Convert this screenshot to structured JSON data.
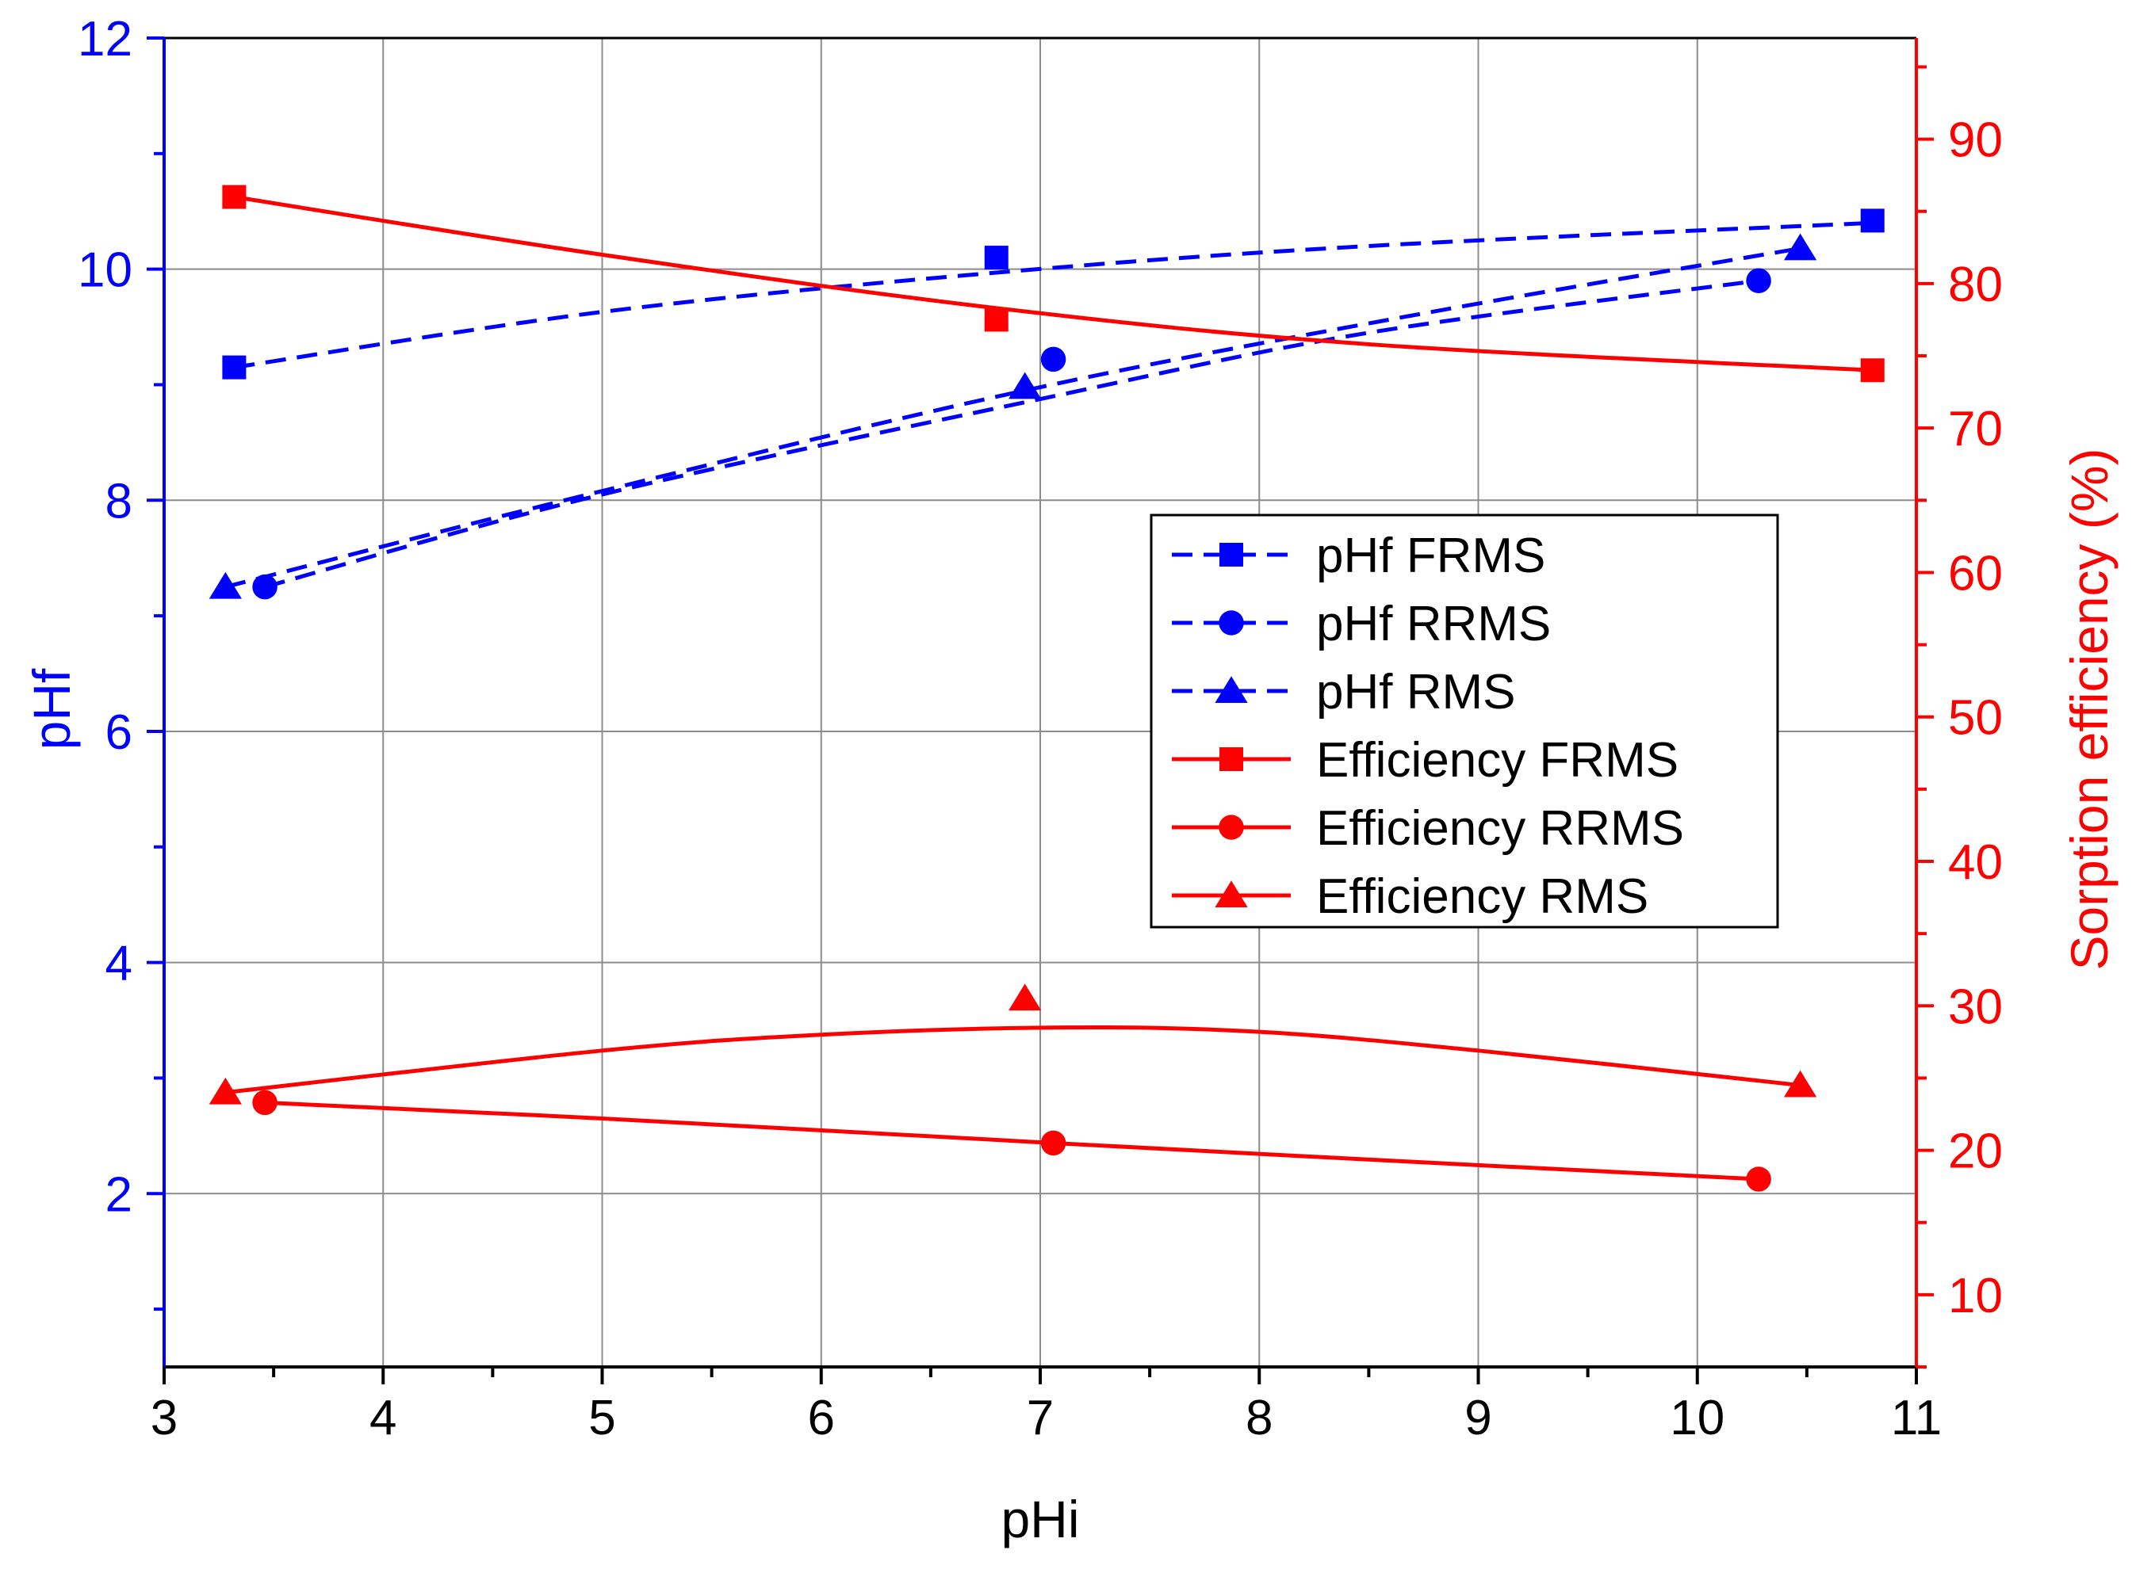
{
  "chart_data": {
    "type": "line",
    "x_axis": {
      "label": "pHi",
      "range": [
        3,
        11
      ],
      "ticks": [
        3,
        4,
        5,
        6,
        7,
        8,
        9,
        10,
        11
      ],
      "minor_step": 0.5,
      "color": "#000000"
    },
    "y_axis_left": {
      "label": "pHf",
      "range": [
        0.5,
        12
      ],
      "ticks": [
        2,
        4,
        6,
        8,
        10,
        12
      ],
      "minor_step": 1,
      "color": "#0000ff"
    },
    "y_axis_right": {
      "label": "Sorption efficiency (%)",
      "range": [
        5,
        97
      ],
      "ticks": [
        10,
        20,
        30,
        40,
        50,
        60,
        70,
        80,
        90
      ],
      "minor_step": 5,
      "color": "#ff0000"
    },
    "grid": true,
    "legend_position": "center-right",
    "series": [
      {
        "name": "pHf FRMS",
        "axis": "left",
        "marker": "square",
        "line": "dashed",
        "color": "#0000ff",
        "points": [
          [
            3.32,
            9.15
          ],
          [
            6.8,
            10.1
          ],
          [
            10.8,
            10.42
          ]
        ],
        "fit": [
          [
            3.32,
            9.15
          ],
          [
            5.0,
            9.63
          ],
          [
            6.8,
            9.97
          ],
          [
            8.5,
            10.2
          ],
          [
            10.8,
            10.4
          ]
        ]
      },
      {
        "name": "pHf RRMS",
        "axis": "left",
        "marker": "circle",
        "line": "dashed",
        "color": "#0000ff",
        "points": [
          [
            3.46,
            7.25
          ],
          [
            7.06,
            9.22
          ],
          [
            10.28,
            9.9
          ]
        ],
        "fit": [
          [
            3.46,
            7.25
          ],
          [
            5.0,
            8.05
          ],
          [
            7.06,
            8.9
          ],
          [
            8.5,
            9.45
          ],
          [
            10.28,
            9.9
          ]
        ]
      },
      {
        "name": "pHf RMS",
        "axis": "left",
        "marker": "triangle",
        "line": "dashed",
        "color": "#0000ff",
        "points": [
          [
            3.28,
            7.25
          ],
          [
            6.93,
            8.98
          ],
          [
            10.47,
            10.18
          ]
        ],
        "fit": [
          [
            3.28,
            7.25
          ],
          [
            5.0,
            8.08
          ],
          [
            6.93,
            8.95
          ],
          [
            8.7,
            9.6
          ],
          [
            10.47,
            10.18
          ]
        ]
      },
      {
        "name": "Efficiency FRMS",
        "axis": "right",
        "marker": "square",
        "line": "solid",
        "color": "#ff0000",
        "points": [
          [
            3.32,
            86.0
          ],
          [
            6.8,
            77.5
          ],
          [
            10.8,
            74.0
          ]
        ],
        "fit": [
          [
            3.32,
            86.0
          ],
          [
            5.0,
            82.0
          ],
          [
            6.8,
            78.3
          ],
          [
            8.5,
            75.8
          ],
          [
            10.8,
            74.0
          ]
        ]
      },
      {
        "name": "Efficiency RRMS",
        "axis": "right",
        "marker": "circle",
        "line": "solid",
        "color": "#ff0000",
        "points": [
          [
            3.46,
            23.3
          ],
          [
            7.06,
            20.5
          ],
          [
            10.28,
            18.0
          ]
        ],
        "fit": [
          [
            3.46,
            23.3
          ],
          [
            5.0,
            22.2
          ],
          [
            7.06,
            20.5
          ],
          [
            8.7,
            19.2
          ],
          [
            10.28,
            18.0
          ]
        ]
      },
      {
        "name": "Efficiency RMS",
        "axis": "right",
        "marker": "triangle",
        "line": "solid",
        "color": "#ff0000",
        "points": [
          [
            3.28,
            24.0
          ],
          [
            6.93,
            30.5
          ],
          [
            10.47,
            24.5
          ]
        ],
        "fit": [
          [
            3.28,
            24.0
          ],
          [
            5.0,
            26.9
          ],
          [
            6.0,
            28.0
          ],
          [
            7.1,
            28.5
          ],
          [
            8.0,
            28.2
          ],
          [
            9.0,
            26.9
          ],
          [
            10.47,
            24.5
          ]
        ]
      }
    ]
  }
}
